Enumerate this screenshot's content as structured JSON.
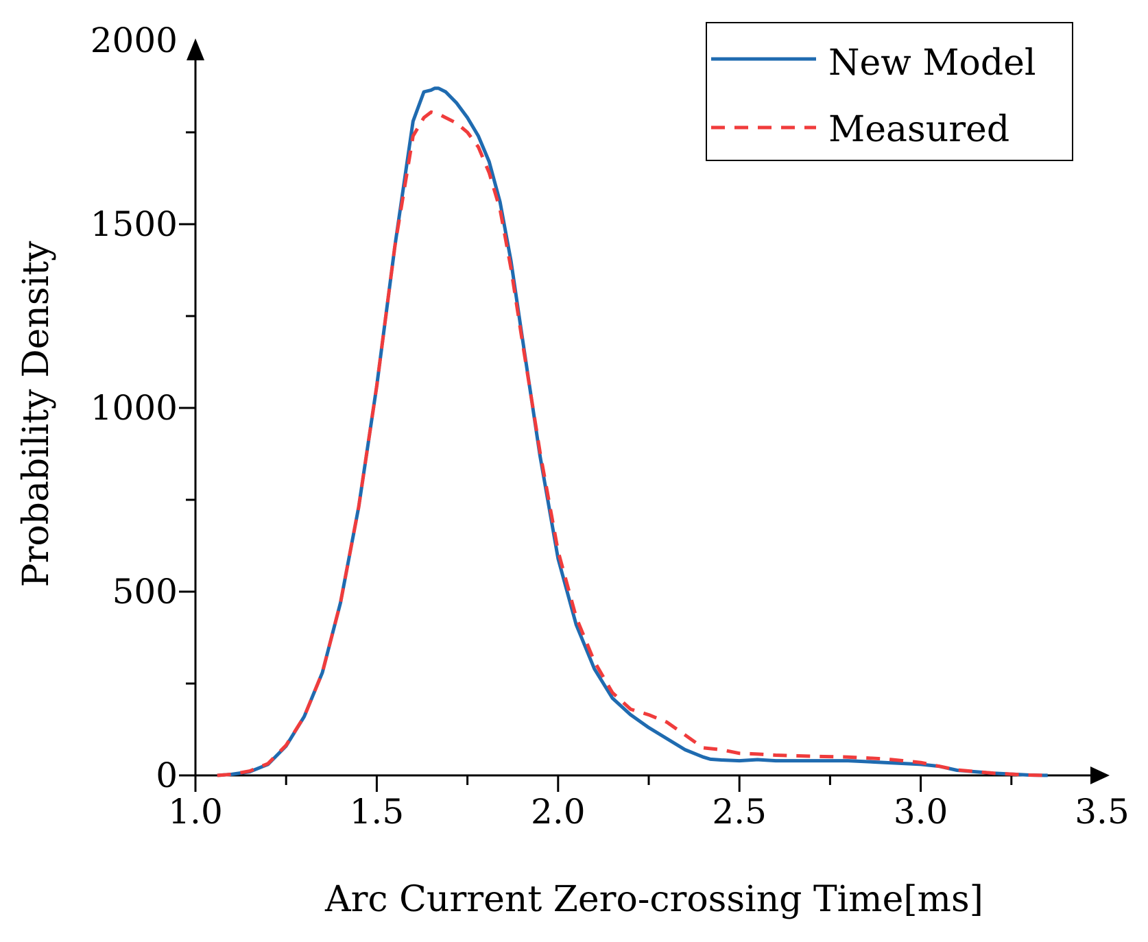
{
  "chart_data": {
    "type": "line",
    "xlabel": "Arc Current Zero-crossing Time[ms]",
    "ylabel": "Probability Density",
    "xlim": [
      1.0,
      3.5
    ],
    "ylim": [
      0,
      2000
    ],
    "xticks": [
      {
        "value": 1.0,
        "label": "1.0"
      },
      {
        "value": 1.5,
        "label": "1.5"
      },
      {
        "value": 2.0,
        "label": "2.0"
      },
      {
        "value": 2.5,
        "label": "2.5"
      },
      {
        "value": 3.0,
        "label": "3.0"
      },
      {
        "value": 3.5,
        "label": "3.5"
      }
    ],
    "yticks": [
      {
        "value": 0,
        "label": "0"
      },
      {
        "value": 500,
        "label": "500"
      },
      {
        "value": 1000,
        "label": "1000"
      },
      {
        "value": 1500,
        "label": "1500"
      },
      {
        "value": 2000,
        "label": "2000"
      }
    ],
    "x_minor_step": 0.25,
    "y_minor_step": 250,
    "grid": false,
    "legend": "top-right",
    "series": [
      {
        "name": "New Model",
        "style": "solid",
        "color": "#1f6bb0",
        "x": [
          1.06,
          1.1,
          1.15,
          1.2,
          1.25,
          1.3,
          1.35,
          1.4,
          1.45,
          1.5,
          1.55,
          1.6,
          1.63,
          1.65,
          1.66,
          1.67,
          1.69,
          1.72,
          1.75,
          1.78,
          1.81,
          1.84,
          1.87,
          1.9,
          1.95,
          2.0,
          2.05,
          2.1,
          2.15,
          2.2,
          2.25,
          2.3,
          2.35,
          2.4,
          2.42,
          2.45,
          2.5,
          2.55,
          2.6,
          2.7,
          2.8,
          2.9,
          3.0,
          3.05,
          3.1,
          3.2,
          3.3,
          3.35
        ],
        "y": [
          0,
          3,
          10,
          30,
          80,
          160,
          280,
          470,
          730,
          1060,
          1440,
          1780,
          1860,
          1865,
          1870,
          1870,
          1860,
          1830,
          1790,
          1740,
          1670,
          1560,
          1400,
          1200,
          870,
          590,
          410,
          290,
          210,
          165,
          130,
          100,
          70,
          50,
          44,
          42,
          40,
          43,
          40,
          40,
          40,
          35,
          30,
          25,
          14,
          6,
          1,
          0
        ]
      },
      {
        "name": "Measured",
        "style": "dashed",
        "color": "#f03c3c",
        "x": [
          1.06,
          1.1,
          1.15,
          1.2,
          1.25,
          1.3,
          1.35,
          1.4,
          1.45,
          1.5,
          1.55,
          1.6,
          1.63,
          1.65,
          1.67,
          1.69,
          1.72,
          1.75,
          1.78,
          1.81,
          1.84,
          1.87,
          1.9,
          1.95,
          2.0,
          2.05,
          2.1,
          2.15,
          2.2,
          2.25,
          2.3,
          2.35,
          2.4,
          2.45,
          2.5,
          2.55,
          2.6,
          2.7,
          2.8,
          2.9,
          3.0,
          3.05,
          3.1,
          3.2,
          3.3,
          3.35
        ],
        "y": [
          0,
          3,
          12,
          32,
          82,
          160,
          280,
          470,
          730,
          1060,
          1440,
          1740,
          1790,
          1805,
          1800,
          1790,
          1775,
          1750,
          1710,
          1640,
          1540,
          1380,
          1190,
          880,
          610,
          430,
          310,
          225,
          180,
          165,
          145,
          110,
          75,
          70,
          60,
          58,
          55,
          52,
          50,
          45,
          35,
          25,
          15,
          6,
          1,
          0
        ]
      }
    ]
  }
}
